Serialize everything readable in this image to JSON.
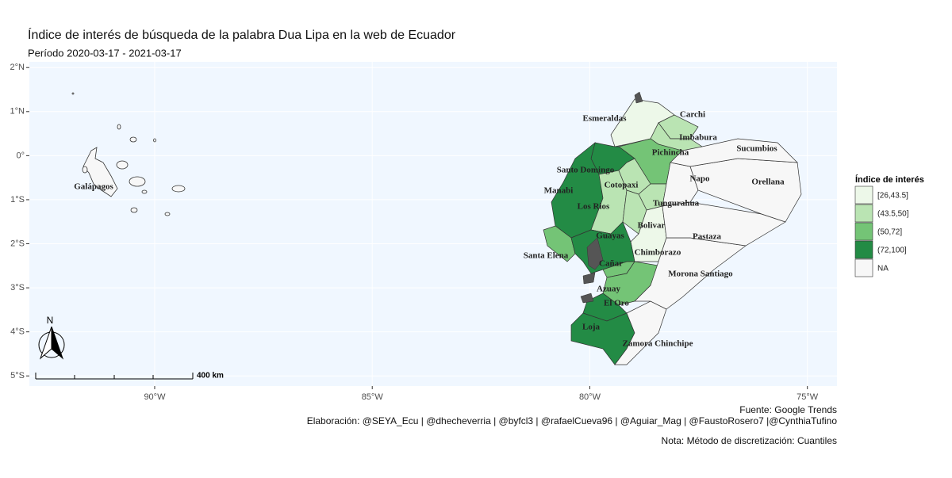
{
  "title": "Índice de interés de búsqueda de la palabra Dua Lipa en la web de Ecuador",
  "subtitle": "Período  2020-03-17 - 2021-03-17",
  "map": {
    "xlim": [
      -92.88,
      -74.32
    ],
    "ylim": [
      -5.23,
      2.13
    ],
    "xticks": [
      {
        "value": -90,
        "label": "90°W"
      },
      {
        "value": -85,
        "label": "85°W"
      },
      {
        "value": -80,
        "label": "80°W"
      },
      {
        "value": -75,
        "label": "75°W"
      }
    ],
    "yticks": [
      {
        "value": 2,
        "label": "2°N"
      },
      {
        "value": 1,
        "label": "1°N"
      },
      {
        "value": 0,
        "label": "0°"
      },
      {
        "value": -1,
        "label": "1°S"
      },
      {
        "value": -2,
        "label": "2°S"
      },
      {
        "value": -3,
        "label": "3°S"
      },
      {
        "value": -4,
        "label": "4°S"
      },
      {
        "value": -5,
        "label": "5°S"
      }
    ],
    "provinces": [
      {
        "name": "Esmeraldas",
        "bin": "[26,43.5]"
      },
      {
        "name": "Carchi",
        "bin": "(43.5,50]"
      },
      {
        "name": "Imbabura",
        "bin": "(43.5,50]"
      },
      {
        "name": "Pichincha",
        "bin": "(50,72]"
      },
      {
        "name": "Santo Domingo",
        "bin": "(72,100]"
      },
      {
        "name": "Manabi",
        "bin": "(72,100]"
      },
      {
        "name": "Los Rios",
        "bin": "(43.5,50]"
      },
      {
        "name": "Cotopaxi",
        "bin": "(43.5,50]"
      },
      {
        "name": "Tungurahua",
        "bin": "(43.5,50]"
      },
      {
        "name": "Bolivar",
        "bin": "(43.5,50]"
      },
      {
        "name": "Chimborazo",
        "bin": "[26,43.5]"
      },
      {
        "name": "Santa Elena",
        "bin": "(50,72]"
      },
      {
        "name": "Guayas",
        "bin": "(72,100]"
      },
      {
        "name": "Cañar",
        "bin": "(50,72]"
      },
      {
        "name": "Azuay",
        "bin": "(50,72]"
      },
      {
        "name": "El Oro",
        "bin": "(72,100]"
      },
      {
        "name": "Loja",
        "bin": "(72,100]"
      },
      {
        "name": "Zamora Chinchipe",
        "bin": "NA"
      },
      {
        "name": "Morona Santiago",
        "bin": "NA"
      },
      {
        "name": "Pastaza",
        "bin": "NA"
      },
      {
        "name": "Napo",
        "bin": "NA"
      },
      {
        "name": "Orellana",
        "bin": "NA"
      },
      {
        "name": "Sucumbios",
        "bin": "NA"
      },
      {
        "name": "Galápagos",
        "bin": "NA"
      }
    ]
  },
  "legend": {
    "title": "Índice de interés",
    "items": [
      {
        "label": "[26,43.5]",
        "color": "#edf8e9"
      },
      {
        "label": "(43.5,50]",
        "color": "#bae4b3"
      },
      {
        "label": "(50,72]",
        "color": "#74c476"
      },
      {
        "label": "(72,100]",
        "color": "#238b45"
      },
      {
        "label": "NA",
        "color": "#f7f7f7"
      }
    ]
  },
  "scale_bar": "400 km",
  "north": "N",
  "caption": [
    "Fuente: Google Trends",
    "Elaboración:  @SEYA_Ecu | @dhecheverria | @byfcl3 | @rafaelCueva96 | @Aguiar_Mag | @FaustoRosero7 |@CynthiaTufino",
    "Nota: Método de discretización: Cuantiles"
  ]
}
